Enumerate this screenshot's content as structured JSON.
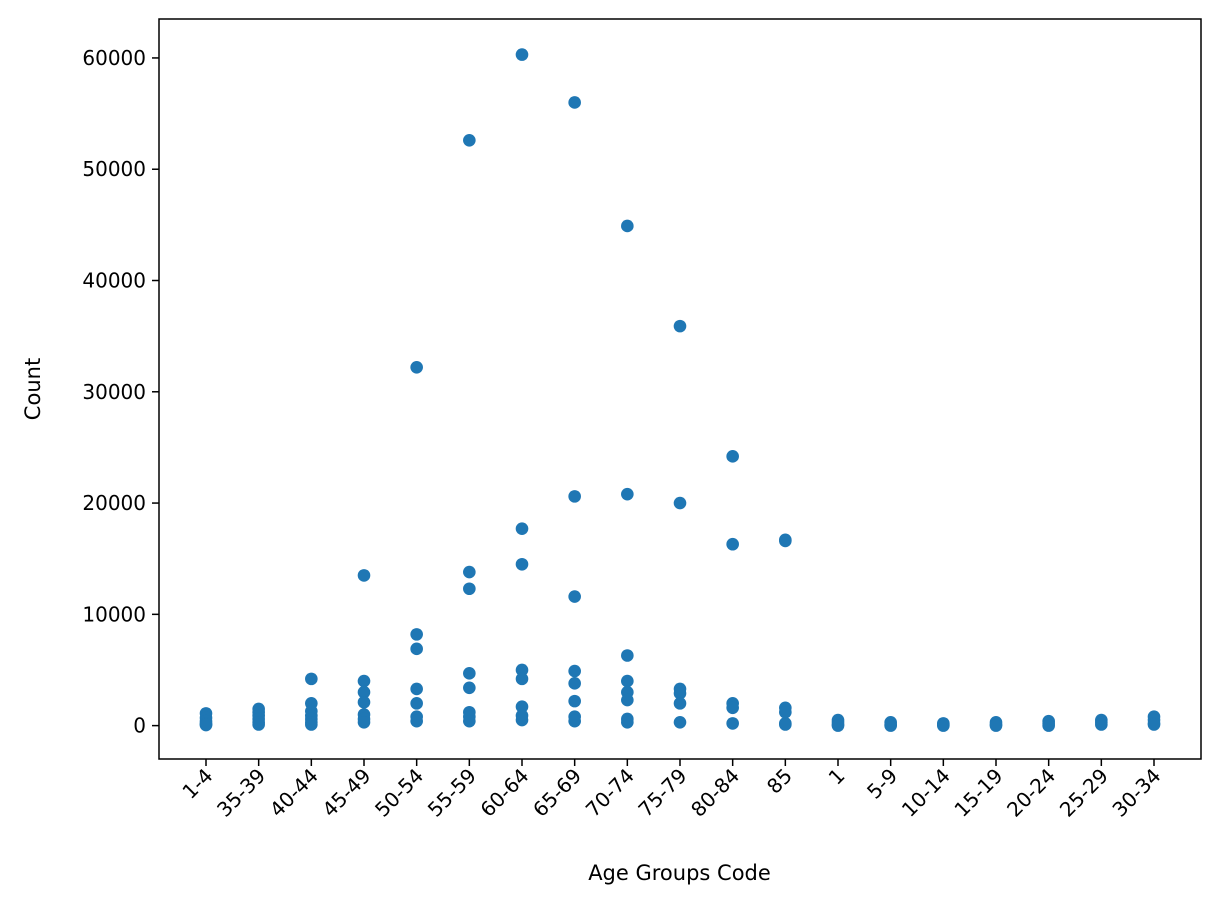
{
  "chart_data": {
    "type": "scatter",
    "title": "",
    "xlabel": "Age Groups Code",
    "ylabel": "Count",
    "categories": [
      "1-4",
      "35-39",
      "40-44",
      "45-49",
      "50-54",
      "55-59",
      "60-64",
      "65-69",
      "70-74",
      "75-79",
      "80-84",
      "85",
      "1",
      "5-9",
      "10-14",
      "15-19",
      "20-24",
      "25-29",
      "30-34"
    ],
    "ylim": [
      -3000,
      63500
    ],
    "yticks": [
      0,
      10000,
      20000,
      30000,
      40000,
      50000,
      60000
    ],
    "grid": false,
    "legend": false,
    "color": "#1f77b4",
    "points": [
      {
        "x": "1-4",
        "values": [
          1100,
          700,
          400,
          200,
          100,
          50
        ]
      },
      {
        "x": "35-39",
        "values": [
          1500,
          1200,
          900,
          600,
          300,
          100
        ]
      },
      {
        "x": "40-44",
        "values": [
          4200,
          2000,
          1300,
          900,
          600,
          300,
          100
        ]
      },
      {
        "x": "45-49",
        "values": [
          13500,
          4000,
          3000,
          2100,
          1000,
          600,
          300
        ]
      },
      {
        "x": "50-54",
        "values": [
          32200,
          8200,
          6900,
          3300,
          2000,
          800,
          400
        ]
      },
      {
        "x": "55-59",
        "values": [
          52600,
          13800,
          12300,
          4700,
          3400,
          1200,
          800,
          400
        ]
      },
      {
        "x": "60-64",
        "values": [
          60300,
          17700,
          14500,
          5000,
          4200,
          1700,
          900,
          500
        ]
      },
      {
        "x": "65-69",
        "values": [
          56000,
          20600,
          11600,
          4900,
          3800,
          2200,
          800,
          400
        ]
      },
      {
        "x": "70-74",
        "values": [
          44900,
          20800,
          6300,
          4000,
          3000,
          2300,
          600,
          300
        ]
      },
      {
        "x": "75-79",
        "values": [
          35900,
          20000,
          3300,
          2900,
          2000,
          300
        ]
      },
      {
        "x": "80-84",
        "values": [
          24200,
          16300,
          2000,
          1600,
          200
        ]
      },
      {
        "x": "85",
        "values": [
          16700,
          16600,
          1600,
          1200,
          200,
          100
        ]
      },
      {
        "x": "1",
        "values": [
          500,
          300,
          100,
          0
        ]
      },
      {
        "x": "5-9",
        "values": [
          300,
          100,
          0
        ]
      },
      {
        "x": "10-14",
        "values": [
          200,
          100,
          0
        ]
      },
      {
        "x": "15-19",
        "values": [
          300,
          100,
          0
        ]
      },
      {
        "x": "20-24",
        "values": [
          400,
          200,
          0
        ]
      },
      {
        "x": "25-29",
        "values": [
          500,
          300,
          100
        ]
      },
      {
        "x": "30-34",
        "values": [
          800,
          500,
          200,
          100
        ]
      }
    ]
  }
}
